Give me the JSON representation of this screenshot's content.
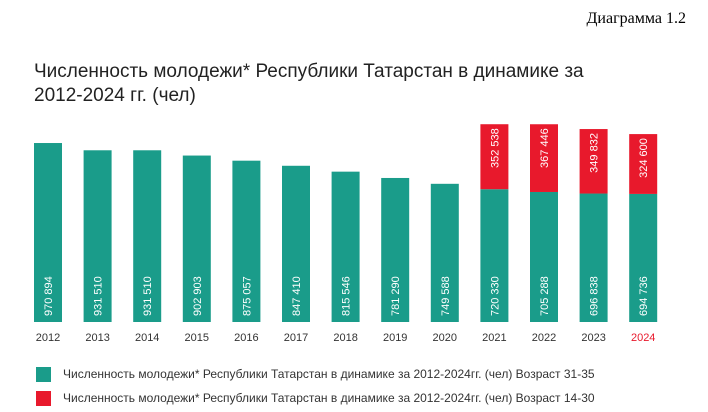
{
  "header": {
    "diagram_label": "Диаграмма 1.2"
  },
  "colors": {
    "teal": "#1a9c8a",
    "red": "#e8192c",
    "year_default": "#333333",
    "year_highlight": "#e8192c"
  },
  "chart_data": {
    "type": "bar",
    "stacked": true,
    "title": "Численность молодежи* Республики Татарстан в динамике за 2012-2024 гг. (чел)",
    "categories": [
      "2012",
      "2013",
      "2014",
      "2015",
      "2016",
      "2017",
      "2018",
      "2019",
      "2020",
      "2021",
      "2022",
      "2023",
      "2024"
    ],
    "highlight_category": "2024",
    "series": [
      {
        "name": "Численность молодежи* Республики Татарстан в динамике за 2012-2024гг. (чел) Возраст 31-35",
        "color": "#1a9c8a",
        "values": [
          970894,
          931510,
          931510,
          902903,
          875057,
          847410,
          815546,
          781290,
          749588,
          720330,
          705288,
          696838,
          694736
        ],
        "labels": [
          "970 894",
          "931 510",
          "931 510",
          "902 903",
          "875 057",
          "847 410",
          "815 546",
          "781 290",
          "749 588",
          "720 330",
          "705 288",
          "696 838",
          "694 736"
        ]
      },
      {
        "name": "Численность молодежи* Республики Татарстан в динамике за 2012-2024гг. (чел) Возраст 14-30",
        "color": "#e8192c",
        "values": [
          null,
          null,
          null,
          null,
          null,
          null,
          null,
          null,
          null,
          352538,
          367446,
          349832,
          324600
        ],
        "labels": [
          "",
          "",
          "",
          "",
          "",
          "",
          "",
          "",
          "",
          "352 538",
          "367 446",
          "349 832",
          "324 600"
        ]
      }
    ],
    "ylim": [
      0,
      1150000
    ],
    "grid": false,
    "legend": "bottom"
  }
}
